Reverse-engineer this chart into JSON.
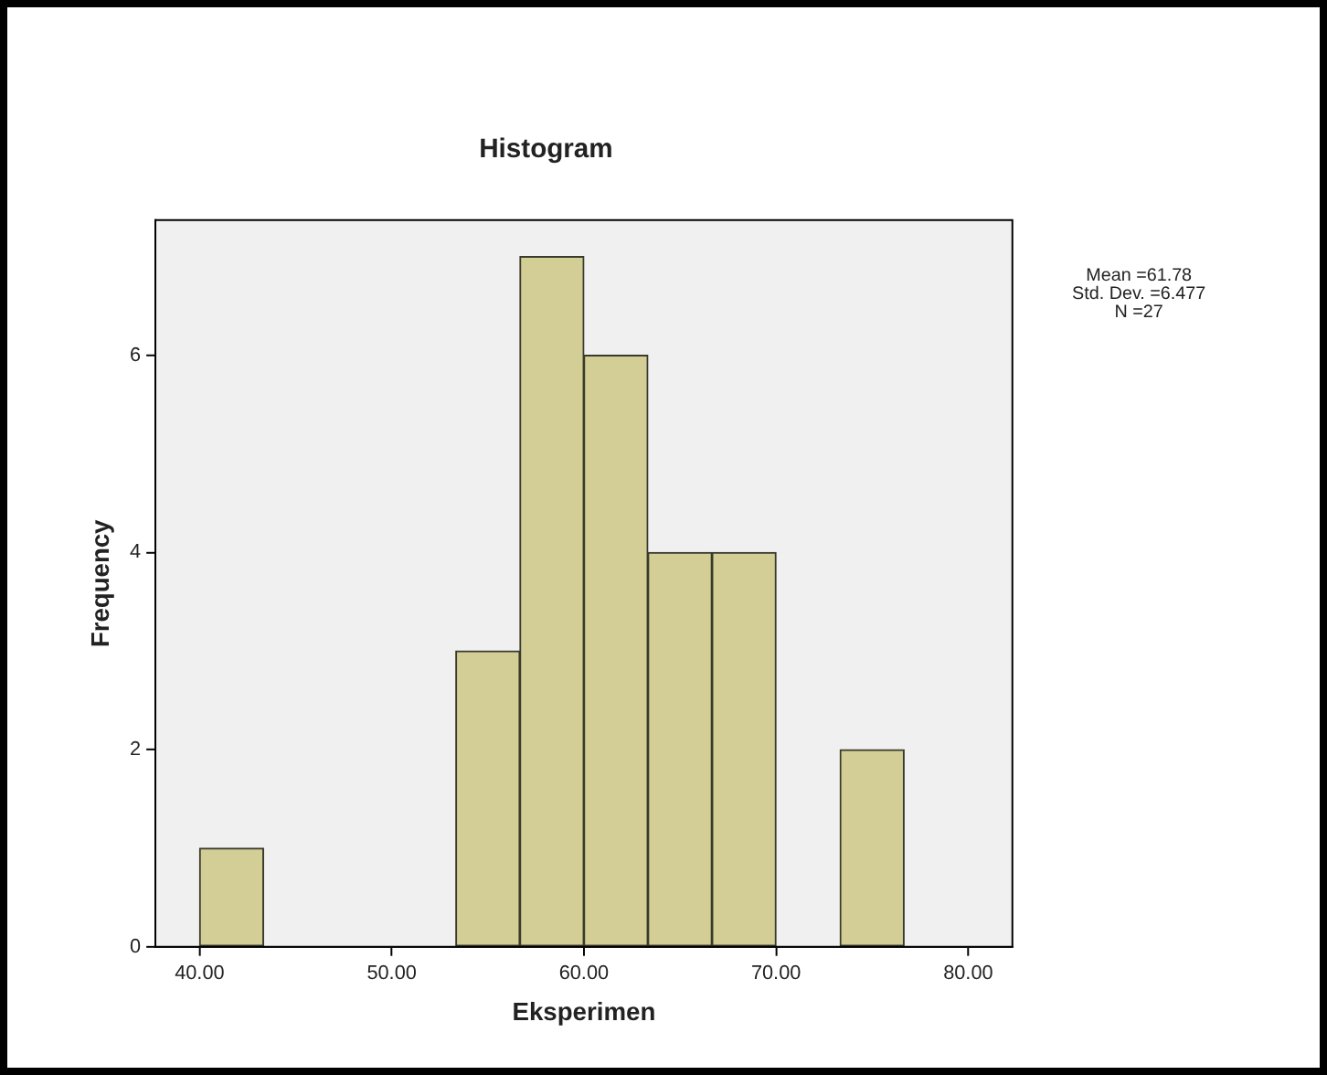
{
  "chart_data": {
    "type": "histogram",
    "title": "Histogram",
    "xlabel": "Eksperimen",
    "ylabel": "Frequency",
    "bins": [
      40,
      43.33,
      46.67,
      50,
      53.33,
      56.67,
      60,
      63.33,
      66.67,
      70,
      73.33,
      76.67
    ],
    "values": [
      1,
      0,
      0,
      0,
      3,
      7,
      6,
      4,
      4,
      0,
      2
    ],
    "color": "#d3ce96",
    "xlim": [
      37.7,
      82.3
    ],
    "xticks": [
      {
        "value": 40,
        "label": "40.00"
      },
      {
        "value": 50,
        "label": "50.00"
      },
      {
        "value": 60,
        "label": "60.00"
      },
      {
        "value": 70,
        "label": "70.00"
      },
      {
        "value": 80,
        "label": "80.00"
      }
    ],
    "ylim": [
      0,
      7.37
    ],
    "yticks": [
      0,
      2,
      4,
      6
    ],
    "grid": false,
    "legend": false,
    "annotations": [
      "Mean =61.78",
      "Std. Dev. =6.477",
      "N =27"
    ]
  }
}
